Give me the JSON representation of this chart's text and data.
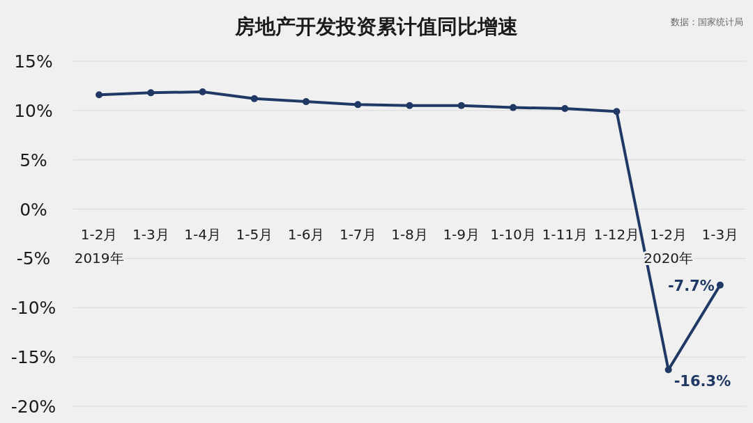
{
  "chart_data": {
    "type": "line",
    "title": "房地产开发投资累计值同比增速",
    "annotations": [
      "数据：国家统计局"
    ],
    "categories": [
      "1-2月\n2019年",
      "1-3月",
      "1-4月",
      "1-5月",
      "1-6月",
      "1-7月",
      "1-8月",
      "1-9月",
      "1-10月",
      "1-11月",
      "1-12月",
      "1-2月\n2020年",
      "1-3月"
    ],
    "series": [
      {
        "color": "#203864",
        "values": [
          11.6,
          11.8,
          11.9,
          11.2,
          10.9,
          10.6,
          10.5,
          10.5,
          10.3,
          10.2,
          9.9,
          -16.3,
          -7.7
        ],
        "value_labels": [
          null,
          null,
          null,
          null,
          null,
          null,
          null,
          null,
          null,
          null,
          null,
          "-16.3%",
          "-7.7%"
        ]
      }
    ],
    "ylim": [
      -20,
      15
    ],
    "yticks": [
      {
        "value": -20,
        "label": "-20%"
      },
      {
        "value": -15,
        "label": "-15%"
      },
      {
        "value": -10,
        "label": "-10%"
      },
      {
        "value": -5,
        "label": "-5%"
      },
      {
        "value": 0,
        "label": "0%"
      },
      {
        "value": 5,
        "label": "5%"
      },
      {
        "value": 10,
        "label": "10%"
      },
      {
        "value": 15,
        "label": "15%"
      }
    ],
    "grid": "y",
    "marker": "circle",
    "line_style": "solid"
  }
}
